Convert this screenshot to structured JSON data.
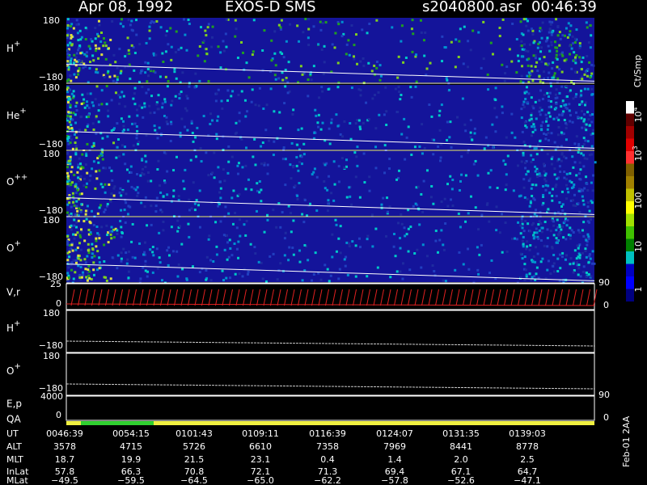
{
  "header": {
    "date": "Apr 08, 1992",
    "instrument": "EXOS-D SMS",
    "file": "s2040800.asr",
    "time": "00:46:39"
  },
  "panels": [
    {
      "label": "H",
      "sup": "+",
      "ytop": "180",
      "ybottom": "−180"
    },
    {
      "label": "He",
      "sup": "+",
      "ytop": "180",
      "ybottom": "−180"
    },
    {
      "label": "O",
      "sup": "++",
      "ytop": "180",
      "ybottom": "−180"
    },
    {
      "label": "O",
      "sup": "+",
      "ytop": "180",
      "ybottom": "−180"
    }
  ],
  "vr": {
    "label": "V,r",
    "left_top": "25",
    "left_bottom": "0",
    "right_top": "90",
    "right_bottom": "0"
  },
  "lower_panels": [
    {
      "label": "H",
      "sup": "+",
      "ytop": "180",
      "ybottom": "−180"
    },
    {
      "label": "O",
      "sup": "+",
      "ytop": "180",
      "ybottom": "−180"
    }
  ],
  "ep": {
    "label": "E,p",
    "left_top": "4000",
    "left_bottom": "0",
    "right_top": "90",
    "right_bottom": "0"
  },
  "qa": {
    "label": "QA"
  },
  "colorbar": {
    "title": "Ct/Smp",
    "labels": [
      {
        "base": "10",
        "sup": "4"
      },
      {
        "base": "10",
        "sup": "3"
      },
      {
        "base": "100",
        "sup": ""
      },
      {
        "base": "10",
        "sup": ""
      },
      {
        "base": "1",
        "sup": ""
      }
    ]
  },
  "table": {
    "rows": [
      [
        "UT",
        "0046:39",
        "0054:15",
        "0101:43",
        "0109:11",
        "0116:39",
        "0124:07",
        "0131:35",
        "0139:03"
      ],
      [
        "ALT",
        "3578",
        "4715",
        "5726",
        "6610",
        "7358",
        "7969",
        "8441",
        "8778"
      ],
      [
        "MLT",
        "18.7",
        "19.9",
        "21.5",
        "23.1",
        "0.4",
        "1.4",
        "2.0",
        "2.5"
      ],
      [
        "InLat",
        "57.8",
        "66.3",
        "70.8",
        "72.1",
        "71.3",
        "69.4",
        "67.1",
        "64.7"
      ],
      [
        "MLat",
        "−49.5",
        "−59.5",
        "−64.5",
        "−65.0",
        "−62.2",
        "−57.8",
        "−52.6",
        "−47.1"
      ]
    ]
  },
  "footer_code": "Feb-01 2AA"
}
